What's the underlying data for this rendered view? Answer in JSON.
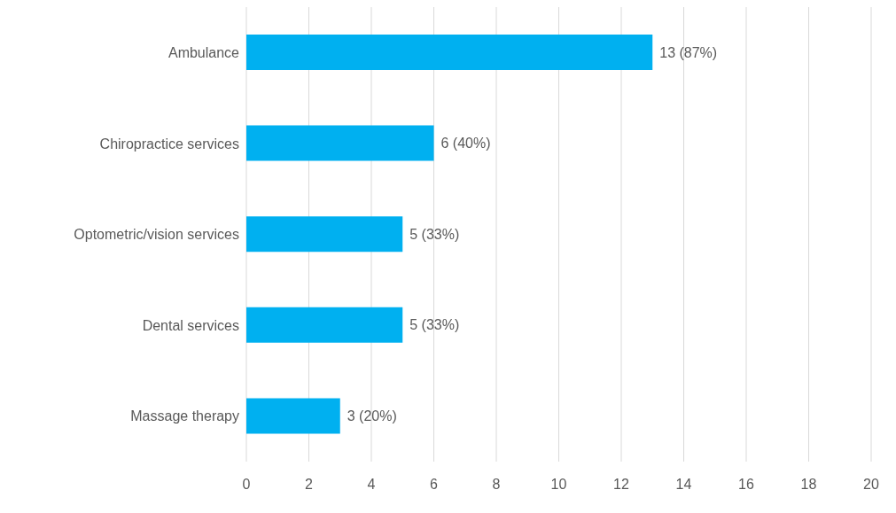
{
  "chart_data": {
    "type": "bar",
    "orientation": "horizontal",
    "categories": [
      "Ambulance",
      "Chiropractice services",
      "Optometric/vision services",
      "Dental services",
      "Massage therapy"
    ],
    "values": [
      13,
      6,
      5,
      5,
      3
    ],
    "color": "#00b0f0",
    "value_labels": [
      "13 (87%)",
      "6 (40%)",
      "5 (33%)",
      "5 (33%)",
      "3 (20%)"
    ],
    "xlim": [
      0,
      20
    ],
    "xticks": [
      0,
      2,
      4,
      6,
      8,
      10,
      12,
      14,
      16,
      18,
      20
    ],
    "grid": "x"
  }
}
